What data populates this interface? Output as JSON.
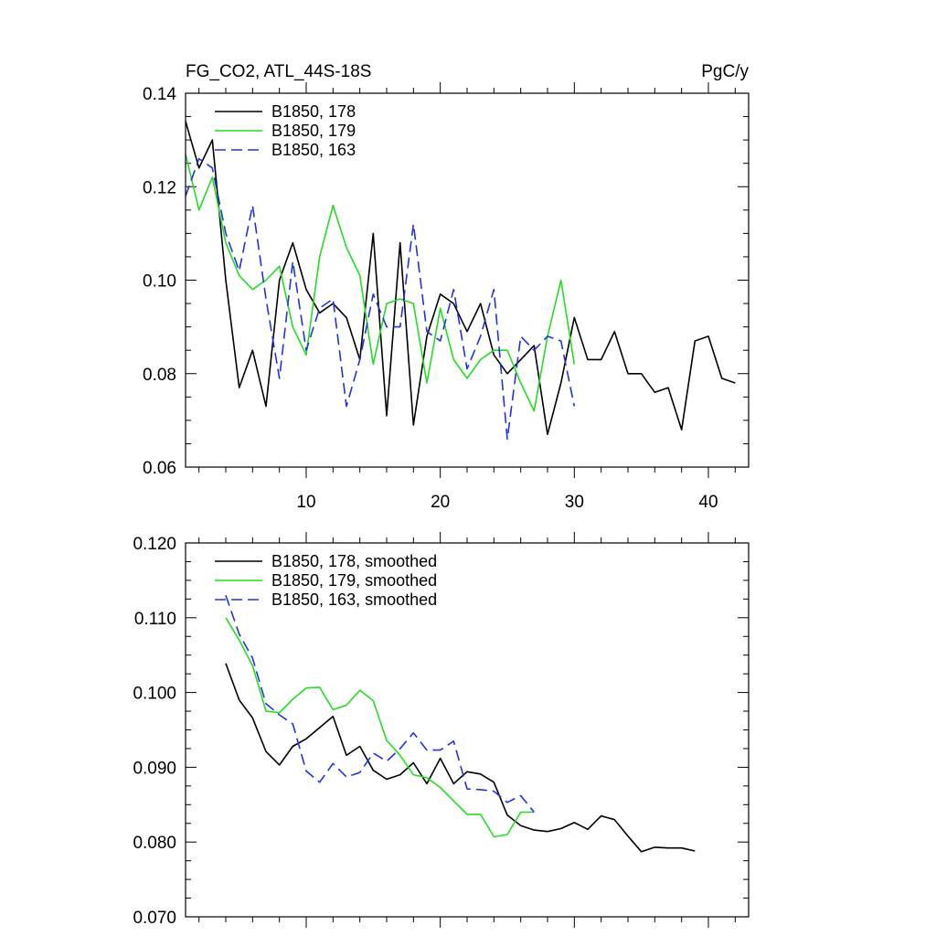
{
  "chart_data": [
    {
      "type": "line",
      "title": "FG_CO2, ATL_44S-18S",
      "units": "PgC/y",
      "xlim": [
        1,
        43
      ],
      "ylim": [
        0.06,
        0.14
      ],
      "x_ticks": [
        10,
        20,
        30,
        40
      ],
      "x_tick_labels": [
        "10",
        "20",
        "30",
        "40"
      ],
      "y_ticks": [
        0.06,
        0.08,
        0.1,
        0.12,
        0.14
      ],
      "y_tick_labels": [
        "0.06",
        "0.08",
        "0.10",
        "0.12",
        "0.14"
      ],
      "legend_position": "top-left",
      "series": [
        {
          "name": "B1850, 178",
          "color": "#000000",
          "dash": "solid",
          "x": [
            1,
            2,
            3,
            4,
            5,
            6,
            7,
            8,
            9,
            10,
            11,
            12,
            13,
            14,
            15,
            16,
            17,
            18,
            19,
            20,
            21,
            22,
            23,
            24,
            25,
            26,
            27,
            28,
            29,
            30,
            31,
            32,
            33,
            34,
            35,
            36,
            37,
            38,
            39,
            40,
            41,
            42
          ],
          "values": [
            0.134,
            0.124,
            0.13,
            0.1,
            0.077,
            0.085,
            0.073,
            0.1,
            0.108,
            0.098,
            0.093,
            0.095,
            0.092,
            0.083,
            0.11,
            0.071,
            0.108,
            0.069,
            0.088,
            0.097,
            0.095,
            0.089,
            0.095,
            0.084,
            0.08,
            0.083,
            0.086,
            0.067,
            0.078,
            0.092,
            0.083,
            0.083,
            0.089,
            0.08,
            0.08,
            0.076,
            0.077,
            0.068,
            0.087,
            0.088,
            0.079,
            0.078
          ]
        },
        {
          "name": "B1850, 179",
          "color": "#22dd22",
          "dash": "solid",
          "x": [
            1,
            2,
            3,
            4,
            5,
            6,
            7,
            8,
            9,
            10,
            11,
            12,
            13,
            14,
            15,
            16,
            17,
            18,
            19,
            20,
            21,
            22,
            23,
            24,
            25,
            26,
            27,
            28,
            29,
            30
          ],
          "values": [
            0.127,
            0.115,
            0.122,
            0.108,
            0.101,
            0.098,
            0.1,
            0.103,
            0.09,
            0.084,
            0.105,
            0.116,
            0.107,
            0.101,
            0.082,
            0.095,
            0.096,
            0.095,
            0.078,
            0.094,
            0.083,
            0.079,
            0.083,
            0.085,
            0.085,
            0.078,
            0.072,
            0.088,
            0.1,
            0.082
          ]
        },
        {
          "name": "B1850, 163",
          "color": "#2233dd",
          "dash": "dashed",
          "x": [
            1,
            2,
            3,
            4,
            5,
            6,
            7,
            8,
            9,
            10,
            11,
            12,
            13,
            14,
            15,
            16,
            17,
            18,
            19,
            20,
            21,
            22,
            23,
            24,
            25,
            26,
            27,
            28,
            29,
            30
          ],
          "values": [
            0.118,
            0.126,
            0.124,
            0.11,
            0.102,
            0.116,
            0.096,
            0.079,
            0.104,
            0.085,
            0.094,
            0.096,
            0.073,
            0.083,
            0.097,
            0.09,
            0.09,
            0.112,
            0.089,
            0.087,
            0.098,
            0.081,
            0.088,
            0.098,
            0.066,
            0.088,
            0.085,
            0.088,
            0.087,
            0.073
          ]
        }
      ]
    },
    {
      "type": "line",
      "title": "",
      "xlim": [
        1,
        43
      ],
      "ylim": [
        0.07,
        0.12
      ],
      "x_ticks": [
        10,
        20,
        30,
        40
      ],
      "x_tick_labels": [],
      "y_ticks": [
        0.07,
        0.08,
        0.09,
        0.1,
        0.11,
        0.12
      ],
      "y_tick_labels": [
        "0.070",
        "0.080",
        "0.090",
        "0.100",
        "0.110",
        "0.120"
      ],
      "legend_position": "top-left",
      "series": [
        {
          "name": "B1850, 178, smoothed",
          "color": "#000000",
          "dash": "solid",
          "x": [
            4,
            5,
            6,
            7,
            8,
            9,
            10,
            11,
            12,
            13,
            14,
            15,
            16,
            17,
            18,
            19,
            20,
            21,
            22,
            23,
            24,
            25,
            26,
            27,
            28,
            29,
            30,
            31,
            32,
            33,
            34,
            35,
            36,
            37,
            38,
            39
          ],
          "values": [
            0.1039,
            0.099,
            0.0966,
            0.0921,
            0.0903,
            0.0928,
            0.0938,
            0.0953,
            0.0968,
            0.0916,
            0.0928,
            0.0896,
            0.0884,
            0.089,
            0.0906,
            0.0878,
            0.0912,
            0.0878,
            0.0894,
            0.0891,
            0.088,
            0.0836,
            0.0822,
            0.0816,
            0.0814,
            0.0818,
            0.0826,
            0.0817,
            0.0835,
            0.083,
            0.0808,
            0.0787,
            0.0793,
            0.0792,
            0.0792,
            0.0788
          ]
        },
        {
          "name": "B1850, 179, smoothed",
          "color": "#22dd22",
          "dash": "solid",
          "x": [
            4,
            5,
            6,
            7,
            8,
            9,
            10,
            11,
            12,
            13,
            14,
            15,
            16,
            17,
            18,
            19,
            20,
            21,
            22,
            23,
            24,
            25,
            26,
            27
          ],
          "values": [
            0.11,
            0.107,
            0.1036,
            0.0975,
            0.0973,
            0.0991,
            0.1006,
            0.1007,
            0.0977,
            0.0983,
            0.1003,
            0.0989,
            0.0936,
            0.0916,
            0.089,
            0.0886,
            0.0873,
            0.0855,
            0.0837,
            0.0837,
            0.0807,
            0.081,
            0.084,
            0.084
          ]
        },
        {
          "name": "B1850, 163, smoothed",
          "color": "#2233dd",
          "dash": "dashed",
          "x": [
            4,
            5,
            6,
            7,
            8,
            9,
            10,
            11,
            12,
            13,
            14,
            15,
            16,
            17,
            18,
            19,
            20,
            21,
            22,
            23,
            24,
            25,
            26,
            27
          ],
          "values": [
            0.113,
            0.1078,
            0.1046,
            0.0985,
            0.097,
            0.0958,
            0.0895,
            0.088,
            0.0905,
            0.0887,
            0.0893,
            0.0919,
            0.0908,
            0.0925,
            0.0946,
            0.0923,
            0.0923,
            0.0935,
            0.0871,
            0.087,
            0.0868,
            0.0853,
            0.0862,
            0.084
          ]
        }
      ]
    }
  ]
}
